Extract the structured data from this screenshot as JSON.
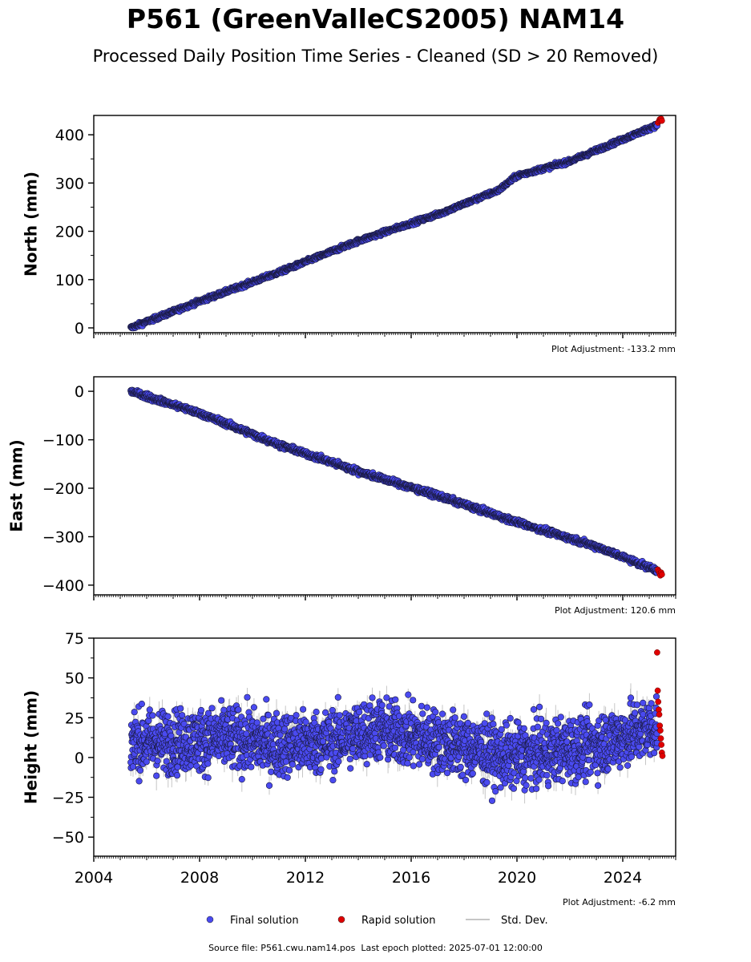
{
  "title": "P561 (GreenValleCS2005) NAM14",
  "subtitle": "Processed Daily Position Time Series - Cleaned (SD > 20 Removed)",
  "footer": {
    "source": "Source file: P561.cwu.nam14.pos",
    "last_epoch": "Last epoch plotted: 2025-07-01 12:00:00"
  },
  "colors": {
    "final": "#4a4af0",
    "final_edge": "#1a1a40",
    "rapid": "#e00000",
    "std_dev": "#b4b4b4"
  },
  "chart_data": [
    {
      "type": "scatter",
      "ylabel": "North (mm)",
      "adjustment": "Plot Adjustment: -133.2 mm",
      "xlim": [
        2004.0,
        2026.0
      ],
      "ylim": [
        -10,
        440
      ],
      "yticks": [
        0,
        100,
        200,
        300,
        400
      ],
      "ytick_labels": [
        "0",
        "100",
        "200",
        "300",
        "400"
      ],
      "show_x_labels": false,
      "series": [
        {
          "name": "Final solution",
          "kind": "trend",
          "x": [
            2005.4,
            2008.0,
            2011.0,
            2014.0,
            2017.0,
            2019.3,
            2020.0,
            2022.0,
            2025.3
          ],
          "y": [
            0,
            55,
            115,
            180,
            235,
            285,
            315,
            345,
            420
          ],
          "noise": 3.0
        },
        {
          "name": "Rapid solution",
          "x": [
            2025.33,
            2025.37,
            2025.4,
            2025.42,
            2025.45,
            2025.48
          ],
          "y": [
            425,
            428,
            432,
            430,
            433,
            429
          ]
        }
      ]
    },
    {
      "type": "scatter",
      "ylabel": "East (mm)",
      "adjustment": "Plot Adjustment: 120.6 mm",
      "xlim": [
        2004.0,
        2026.0
      ],
      "ylim": [
        -420,
        30
      ],
      "yticks": [
        0,
        -100,
        -200,
        -300,
        -400
      ],
      "ytick_labels": [
        "0",
        "−100",
        "−200",
        "−300",
        "−400"
      ],
      "show_x_labels": false,
      "series": [
        {
          "name": "Final solution",
          "kind": "trend",
          "x": [
            2005.4,
            2008.0,
            2011.0,
            2014.0,
            2017.0,
            2020.0,
            2023.0,
            2025.3
          ],
          "y": [
            0,
            -45,
            -110,
            -165,
            -215,
            -270,
            -320,
            -370
          ],
          "noise": 4.0
        },
        {
          "name": "Rapid solution",
          "x": [
            2025.33,
            2025.37,
            2025.4,
            2025.42,
            2025.45,
            2025.48
          ],
          "y": [
            -368,
            -372,
            -376,
            -380,
            -374,
            -378
          ]
        }
      ]
    },
    {
      "type": "scatter",
      "ylabel": "Height (mm)",
      "adjustment": "Plot Adjustment: -6.2 mm",
      "xlim": [
        2004.0,
        2026.0
      ],
      "ylim": [
        -62,
        75
      ],
      "yticks": [
        -50,
        -25,
        0,
        25,
        50,
        75
      ],
      "ytick_labels": [
        "−50",
        "−25",
        "0",
        "25",
        "50",
        "75"
      ],
      "show_x_labels": true,
      "xticks": [
        2004,
        2008,
        2012,
        2016,
        2020,
        2024
      ],
      "xtick_labels": [
        "2004",
        "2008",
        "2012",
        "2016",
        "2020",
        "2024"
      ],
      "series": [
        {
          "name": "Final solution",
          "kind": "noise",
          "x": [
            2005.4,
            2007.0,
            2009.0,
            2011.0,
            2013.0,
            2014.5,
            2016.5,
            2018.5,
            2019.5,
            2021.0,
            2023.0,
            2025.3
          ],
          "y": [
            10,
            10,
            12,
            8,
            10,
            18,
            12,
            5,
            0,
            3,
            8,
            20
          ],
          "noise": 14.0
        },
        {
          "name": "Rapid solution",
          "x": [
            2025.3,
            2025.32,
            2025.34,
            2025.36,
            2025.38,
            2025.4,
            2025.42,
            2025.44,
            2025.46,
            2025.48,
            2025.5
          ],
          "y": [
            66,
            42,
            35,
            30,
            27,
            20,
            17,
            12,
            8,
            3,
            1
          ]
        }
      ]
    }
  ],
  "legend": [
    {
      "label": "Final solution",
      "marker": "dot",
      "color": "#4a4af0"
    },
    {
      "label": "Rapid solution",
      "marker": "dot",
      "color": "#e00000"
    },
    {
      "label": "Std. Dev.",
      "marker": "line",
      "color": "#b4b4b4"
    }
  ]
}
